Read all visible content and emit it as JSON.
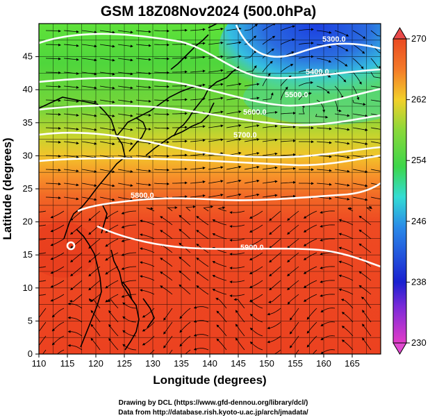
{
  "title": "GSM 18Z08Nov2024 (500.0hPa)",
  "axes": {
    "xlabel": "Longitude (degrees)",
    "ylabel": "Latitude  (degrees)",
    "xticks": [
      "110",
      "115",
      "120",
      "125",
      "130",
      "135",
      "140",
      "145",
      "150",
      "155",
      "160",
      "165"
    ],
    "yticks": [
      "0",
      "5",
      "10",
      "15",
      "20",
      "25",
      "30",
      "35",
      "40",
      "45"
    ],
    "xlim": [
      110,
      170
    ],
    "ylim": [
      0,
      50
    ]
  },
  "colorbar": {
    "labels": [
      "230",
      "238",
      "246",
      "254",
      "262",
      "270"
    ],
    "range": [
      230,
      270
    ]
  },
  "contours": {
    "labels": [
      "5300.0",
      "5400.0",
      "5500.0",
      "5600.0",
      "5700.0",
      "5800.0",
      "5900.0"
    ]
  },
  "credits": {
    "line1": "Drawing by DCL (https://www.gfd-dennou.org/library/dcl/)",
    "line2": "Data from http://database.rish.kyoto-u.ac.jp/arch/jmadata/"
  },
  "colors": {
    "warm": "#ee4a22",
    "yellow": "#f2c42a",
    "green": "#48cf3c",
    "cyan": "#33dcd4",
    "blue": "#1b49d8"
  }
}
